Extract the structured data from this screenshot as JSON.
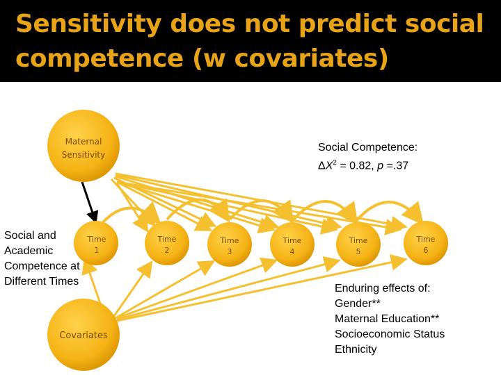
{
  "title": {
    "line1": "Sensitivity does not predict social",
    "line2": "competence (w covariates)"
  },
  "colors": {
    "title_bg": "#000000",
    "title_text": "#e8a317",
    "node_fill": "#f5b316",
    "node_label": "#7a4a00",
    "arrow": "#f5c030",
    "path_arrow": "#000000"
  },
  "nodes": {
    "maternal_sensitivity": {
      "line1": "Maternal",
      "line2": "Sensitivity"
    },
    "covariates": {
      "label": "Covariates"
    },
    "times": [
      {
        "line1": "Time",
        "line2": "1"
      },
      {
        "line1": "Time",
        "line2": "2"
      },
      {
        "line1": "Time",
        "line2": "3"
      },
      {
        "line1": "Time",
        "line2": "4"
      },
      {
        "line1": "Time",
        "line2": "5"
      },
      {
        "line1": "Time",
        "line2": "6"
      }
    ]
  },
  "side_label": {
    "line1": "Social and",
    "line2": "Academic",
    "line3": "Competence at",
    "line4": "Different Times"
  },
  "social_competence": {
    "line1": "Social Competence:",
    "delta": "Δ",
    "chi": "X",
    "sup": "2",
    "equals": " = 0.82, ",
    "p": "p",
    "p_value": " =.37"
  },
  "enduring": {
    "heading": "Enduring effects of:",
    "items": [
      "Gender**",
      "Maternal Education**",
      "Socioeconomic Status",
      "Ethnicity"
    ]
  }
}
